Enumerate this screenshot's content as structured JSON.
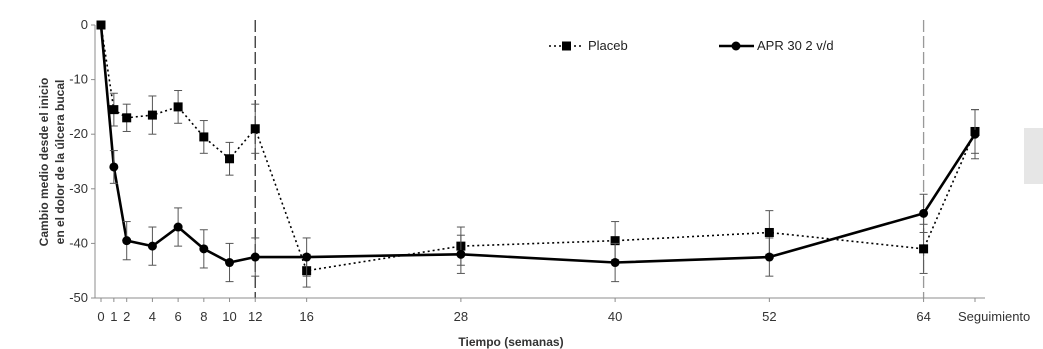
{
  "chart_data": {
    "type": "line",
    "xlabel": "Tiempo (semanas)",
    "ylabel_lines": [
      "Cambio medio desde el inicio",
      "en el dolor de la úlcera bucal"
    ],
    "x_tick_labels": [
      "0",
      "1",
      "2",
      "4",
      "6",
      "8",
      "10",
      "12",
      "16",
      "28",
      "40",
      "52",
      "64",
      "Seguimiento"
    ],
    "x_tick_values": [
      0,
      1,
      2,
      4,
      6,
      8,
      10,
      12,
      16,
      28,
      40,
      52,
      64,
      68
    ],
    "xlim": [
      0,
      68
    ],
    "ylim": [
      -50,
      0
    ],
    "y_ticks": [
      0,
      -10,
      -20,
      -30,
      -40,
      -50
    ],
    "vlines": [
      12,
      64
    ],
    "legend_position": "top-right",
    "series": [
      {
        "name": "Placeb",
        "style": "dotted",
        "marker": "square",
        "color": "#000000",
        "x": [
          0,
          1,
          2,
          4,
          6,
          8,
          10,
          12,
          16,
          28,
          40,
          52,
          64,
          68
        ],
        "y": [
          0,
          -15.5,
          -17,
          -16.5,
          -15,
          -20.5,
          -24.5,
          -19,
          -45,
          -40.5,
          -39.5,
          -38,
          -41,
          -19.5
        ],
        "err": [
          0,
          3,
          2.5,
          3.5,
          3,
          3,
          3,
          4.5,
          3,
          3.5,
          3.5,
          4,
          4.5,
          4
        ]
      },
      {
        "name": "APR 30 2 v/d",
        "style": "solid",
        "marker": "circle",
        "color": "#000000",
        "x": [
          0,
          1,
          2,
          4,
          6,
          8,
          10,
          12,
          16,
          28,
          40,
          52,
          64,
          68
        ],
        "y": [
          0,
          -26,
          -39.5,
          -40.5,
          -37,
          -41,
          -43.5,
          -42.5,
          -42.5,
          -42,
          -43.5,
          -42.5,
          -34.5,
          -20
        ],
        "err": [
          0,
          3,
          3.5,
          3.5,
          3.5,
          3.5,
          3.5,
          3.5,
          3.5,
          3.5,
          3.5,
          3.5,
          3.5,
          4.5
        ]
      }
    ]
  }
}
